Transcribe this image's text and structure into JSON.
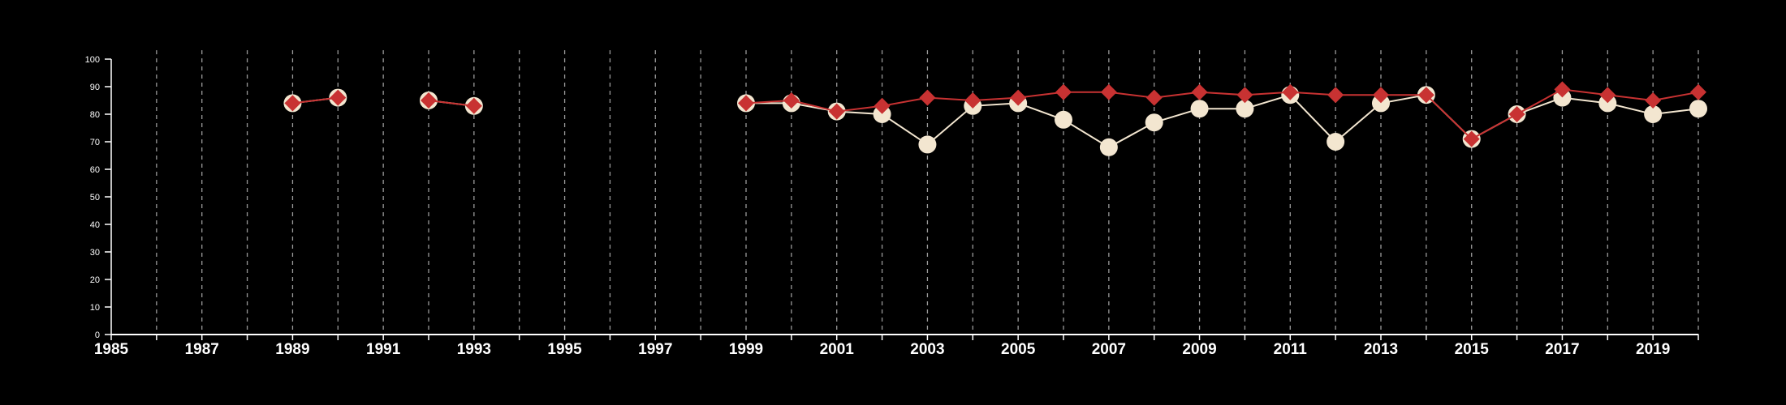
{
  "chart_data": {
    "type": "line",
    "title": "",
    "xlabel": "",
    "ylabel": "",
    "xlim": [
      1985,
      2020
    ],
    "ylim": [
      0,
      100
    ],
    "x_ticks": [
      "1985",
      "1987",
      "1989",
      "1991",
      "1993",
      "1995",
      "1997",
      "1999",
      "2001",
      "2003",
      "2005",
      "2007",
      "2009",
      "2011",
      "2013",
      "2015",
      "2017",
      "2019"
    ],
    "y_ticks": [
      "0",
      "10",
      "20",
      "30",
      "40",
      "50",
      "60",
      "70",
      "80",
      "90",
      "100"
    ],
    "grid": "vertical dashed lines at every year",
    "legend": "none",
    "background_color": "#000000",
    "axis_color": "#ffffff",
    "grid_color": "#9a9a9a",
    "x": [
      1989,
      1990,
      1991,
      1992,
      1993,
      1994,
      1995,
      1996,
      1997,
      1998,
      1999,
      2000,
      2001,
      2002,
      2003,
      2004,
      2005,
      2006,
      2007,
      2008,
      2009,
      2010,
      2011,
      2012,
      2013,
      2014,
      2015,
      2016,
      2017,
      2018,
      2019,
      2020
    ],
    "series": [
      {
        "color": "#f3e6d0",
        "marker": "circle",
        "values": [
          84,
          86,
          null,
          85,
          83,
          null,
          null,
          null,
          null,
          null,
          84,
          84,
          81,
          80,
          69,
          83,
          84,
          78,
          68,
          77,
          82,
          82,
          87,
          70,
          84,
          87,
          71,
          80,
          86,
          84,
          80,
          82
        ]
      },
      {
        "color": "#c83232",
        "marker": "diamond",
        "values": [
          84,
          86,
          null,
          85,
          83,
          null,
          null,
          null,
          null,
          null,
          84,
          85,
          81,
          83,
          86,
          85,
          86,
          88,
          88,
          86,
          88,
          87,
          88,
          87,
          87,
          87,
          71,
          80,
          89,
          87,
          85,
          88
        ]
      }
    ]
  }
}
